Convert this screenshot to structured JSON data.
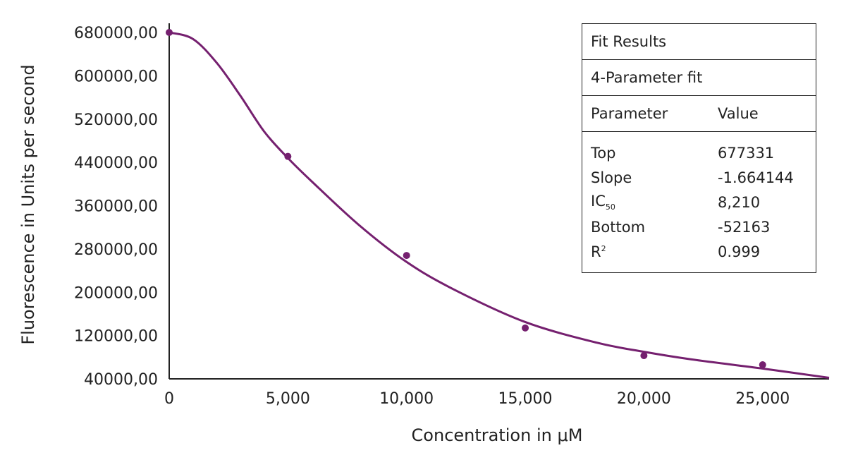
{
  "chart_data": {
    "type": "scatter",
    "xlabel": "Concentration in μM",
    "ylabel": "Fluorescence in Units per second",
    "xlim": [
      0,
      27800
    ],
    "ylim": [
      40000,
      680000
    ],
    "x_ticks": [
      0,
      5000,
      10000,
      15000,
      20000,
      25000
    ],
    "x_tick_labels": [
      "0",
      "5,000",
      "10,000",
      "15,000",
      "20,000",
      "25,000"
    ],
    "y_ticks": [
      40000,
      120000,
      200000,
      280000,
      360000,
      440000,
      520000,
      600000,
      680000
    ],
    "y_tick_labels": [
      "40000,00",
      "120000,00",
      "200000,00",
      "280000,00",
      "360000,00",
      "440000,00",
      "520000,00",
      "600000,00",
      "680000,00"
    ],
    "series": [
      {
        "type": "scatter",
        "x": [
          0,
          5000,
          10000,
          15000,
          20000,
          25000
        ],
        "y": [
          680000,
          451000,
          268000,
          134000,
          83000,
          66000
        ]
      },
      {
        "type": "line",
        "x": [
          0,
          1000,
          2000,
          3000,
          4000,
          5000,
          6000,
          8000,
          10000,
          12000,
          15000,
          18000,
          20000,
          22000,
          25000,
          27800
        ],
        "y": [
          680000,
          668000,
          624000,
          563000,
          497000,
          448000,
          405000,
          324000,
          256000,
          205000,
          145000,
          107000,
          90000,
          76000,
          59000,
          42000
        ]
      }
    ],
    "grid": false,
    "color": "#75206f"
  },
  "fit_results": {
    "title": "Fit Results",
    "method": "4-Parameter fit",
    "col_param": "Parameter",
    "col_value": "Value",
    "rows": [
      {
        "name": "Top",
        "value": "677331"
      },
      {
        "name": "Slope",
        "value": "-1.664144"
      },
      {
        "name_main": "IC",
        "name_sub": "50",
        "value": "8,210"
      },
      {
        "name": "Bottom",
        "value": "-52163"
      },
      {
        "name_main": "R",
        "name_sup": "2",
        "value": "0.999"
      }
    ]
  }
}
